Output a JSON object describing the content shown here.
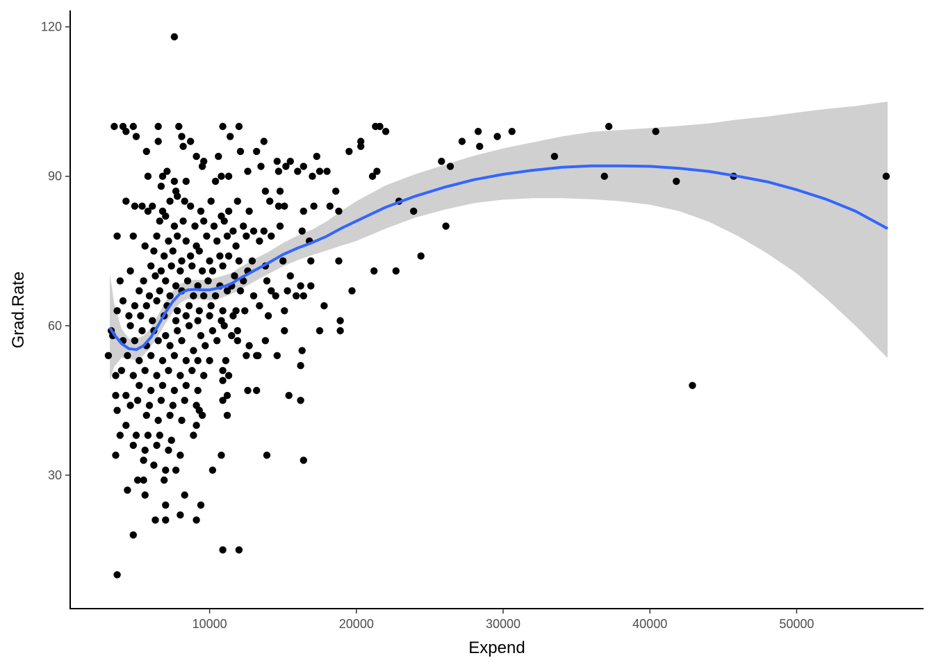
{
  "chart_data": {
    "type": "scatter",
    "title": "",
    "xlabel": "Expend",
    "ylabel": "Grad.Rate",
    "xlim": [
      500,
      58600
    ],
    "ylim": [
      3.2,
      123.3
    ],
    "xticks": [
      10000,
      20000,
      30000,
      40000,
      50000
    ],
    "xtick_labels": [
      "10000",
      "20000",
      "30000",
      "40000",
      "50000"
    ],
    "yticks": [
      30,
      60,
      90,
      120
    ],
    "ytick_labels": [
      "30",
      "60",
      "90",
      "120"
    ],
    "grid": false,
    "legend": "none",
    "colors": {
      "points": "#000000",
      "smooth_line": "#3366FF",
      "ribbon": "#BEBEBE",
      "axis": "#000000",
      "tick_label": "#4D4D4D"
    },
    "points": [
      [
        7600,
        118
      ],
      [
        3500,
        100
      ],
      [
        4100,
        100
      ],
      [
        4800,
        100
      ],
      [
        6500,
        100
      ],
      [
        7900,
        100
      ],
      [
        10900,
        100
      ],
      [
        12000,
        100
      ],
      [
        21300,
        100
      ],
      [
        21600,
        100
      ],
      [
        37200,
        100
      ],
      [
        4300,
        99
      ],
      [
        5000,
        98
      ],
      [
        28300,
        99
      ],
      [
        30600,
        99
      ],
      [
        40400,
        99
      ],
      [
        22000,
        99
      ],
      [
        8100,
        98
      ],
      [
        11400,
        98
      ],
      [
        29600,
        98
      ],
      [
        5700,
        95
      ],
      [
        6500,
        97
      ],
      [
        8200,
        96
      ],
      [
        8700,
        97
      ],
      [
        13200,
        95
      ],
      [
        13700,
        97
      ],
      [
        20300,
        97
      ],
      [
        27200,
        97
      ],
      [
        28400,
        96
      ],
      [
        9100,
        94
      ],
      [
        9600,
        93
      ],
      [
        10600,
        94
      ],
      [
        12100,
        95
      ],
      [
        14600,
        93
      ],
      [
        15500,
        93
      ],
      [
        17300,
        94
      ],
      [
        19500,
        95
      ],
      [
        20300,
        96
      ],
      [
        25800,
        93
      ],
      [
        33500,
        94
      ],
      [
        5800,
        90
      ],
      [
        6800,
        90
      ],
      [
        7100,
        91
      ],
      [
        7600,
        89
      ],
      [
        8400,
        89
      ],
      [
        9500,
        92
      ],
      [
        10400,
        89
      ],
      [
        10800,
        90
      ],
      [
        11300,
        90
      ],
      [
        12600,
        91
      ],
      [
        13500,
        92
      ],
      [
        14700,
        91
      ],
      [
        15200,
        92
      ],
      [
        16000,
        91
      ],
      [
        16400,
        92
      ],
      [
        17500,
        91
      ],
      [
        18000,
        91
      ],
      [
        21100,
        90
      ],
      [
        21400,
        91
      ],
      [
        26400,
        92
      ],
      [
        36900,
        90
      ],
      [
        41800,
        89
      ],
      [
        45700,
        90
      ],
      [
        56100,
        90
      ],
      [
        6700,
        88
      ],
      [
        7700,
        87
      ],
      [
        13800,
        87
      ],
      [
        14800,
        87
      ],
      [
        17000,
        90
      ],
      [
        18600,
        87
      ],
      [
        4300,
        85
      ],
      [
        4900,
        84
      ],
      [
        5400,
        84
      ],
      [
        6100,
        84
      ],
      [
        6800,
        83
      ],
      [
        7300,
        85
      ],
      [
        7800,
        86
      ],
      [
        8300,
        85
      ],
      [
        8700,
        84
      ],
      [
        9400,
        83
      ],
      [
        10100,
        85
      ],
      [
        10800,
        82
      ],
      [
        11300,
        83
      ],
      [
        11900,
        85
      ],
      [
        12700,
        83
      ],
      [
        14100,
        85
      ],
      [
        14700,
        84
      ],
      [
        15100,
        84
      ],
      [
        16400,
        83
      ],
      [
        17100,
        84
      ],
      [
        18200,
        84
      ],
      [
        18800,
        83
      ],
      [
        22900,
        85
      ],
      [
        23900,
        83
      ],
      [
        5800,
        83
      ],
      [
        6600,
        81
      ],
      [
        7000,
        82
      ],
      [
        7600,
        80
      ],
      [
        8200,
        81
      ],
      [
        9000,
        80
      ],
      [
        9600,
        81
      ],
      [
        10300,
        80
      ],
      [
        11000,
        81
      ],
      [
        11600,
        79
      ],
      [
        12300,
        80
      ],
      [
        13000,
        79
      ],
      [
        13700,
        79
      ],
      [
        14800,
        80
      ],
      [
        16300,
        79
      ],
      [
        26100,
        80
      ],
      [
        3700,
        78
      ],
      [
        4800,
        78
      ],
      [
        5600,
        76
      ],
      [
        6400,
        78
      ],
      [
        7200,
        77
      ],
      [
        7800,
        78
      ],
      [
        8400,
        77
      ],
      [
        9100,
        76
      ],
      [
        9800,
        78
      ],
      [
        10500,
        77
      ],
      [
        11200,
        78
      ],
      [
        11800,
        76
      ],
      [
        12500,
        78
      ],
      [
        13400,
        77
      ],
      [
        14200,
        78
      ],
      [
        16800,
        77
      ],
      [
        6200,
        75
      ],
      [
        6900,
        74
      ],
      [
        7500,
        75
      ],
      [
        8100,
        73
      ],
      [
        8700,
        74
      ],
      [
        9300,
        75
      ],
      [
        10000,
        73
      ],
      [
        10700,
        74
      ],
      [
        11300,
        74
      ],
      [
        12000,
        73
      ],
      [
        12900,
        73
      ],
      [
        15000,
        73
      ],
      [
        24400,
        74
      ],
      [
        6000,
        72
      ],
      [
        6700,
        71
      ],
      [
        7400,
        72
      ],
      [
        8000,
        71
      ],
      [
        8800,
        72
      ],
      [
        9500,
        71
      ],
      [
        10200,
        71
      ],
      [
        10900,
        72
      ],
      [
        11700,
        70
      ],
      [
        12600,
        71
      ],
      [
        13800,
        72
      ],
      [
        16900,
        73
      ],
      [
        18800,
        73
      ],
      [
        21200,
        71
      ],
      [
        22700,
        71
      ],
      [
        4600,
        71
      ],
      [
        5500,
        69
      ],
      [
        6300,
        70
      ],
      [
        7000,
        69
      ],
      [
        7700,
        68
      ],
      [
        8500,
        69
      ],
      [
        9200,
        68
      ],
      [
        9900,
        69
      ],
      [
        10700,
        68
      ],
      [
        11500,
        68
      ],
      [
        12300,
        69
      ],
      [
        13900,
        69
      ],
      [
        15500,
        70
      ],
      [
        3900,
        69
      ],
      [
        16200,
        68
      ],
      [
        16900,
        68
      ],
      [
        5200,
        67
      ],
      [
        5900,
        66
      ],
      [
        6600,
        67
      ],
      [
        7300,
        66
      ],
      [
        8100,
        67
      ],
      [
        8900,
        66
      ],
      [
        9600,
        66
      ],
      [
        10400,
        66
      ],
      [
        11200,
        67
      ],
      [
        12100,
        67
      ],
      [
        13000,
        66
      ],
      [
        14200,
        67
      ],
      [
        15300,
        67
      ],
      [
        19700,
        67
      ],
      [
        4100,
        65
      ],
      [
        4900,
        64
      ],
      [
        5700,
        64
      ],
      [
        6400,
        65
      ],
      [
        7100,
        64
      ],
      [
        7800,
        63
      ],
      [
        8600,
        64
      ],
      [
        9300,
        63
      ],
      [
        10100,
        64
      ],
      [
        10900,
        63
      ],
      [
        11800,
        63
      ],
      [
        13400,
        64
      ],
      [
        14500,
        66
      ],
      [
        15900,
        66
      ],
      [
        16400,
        66
      ],
      [
        17800,
        64
      ],
      [
        3700,
        63
      ],
      [
        4500,
        62
      ],
      [
        5300,
        62
      ],
      [
        6100,
        61
      ],
      [
        6900,
        62
      ],
      [
        7700,
        61
      ],
      [
        8400,
        62
      ],
      [
        9200,
        61
      ],
      [
        10000,
        62
      ],
      [
        10800,
        61
      ],
      [
        11600,
        62
      ],
      [
        12400,
        63
      ],
      [
        14000,
        62
      ],
      [
        15100,
        63
      ],
      [
        4600,
        60
      ],
      [
        5400,
        59
      ],
      [
        6200,
        59
      ],
      [
        7000,
        58
      ],
      [
        7800,
        59
      ],
      [
        8600,
        60
      ],
      [
        9400,
        58
      ],
      [
        10200,
        59
      ],
      [
        11000,
        60
      ],
      [
        11900,
        59
      ],
      [
        15100,
        59
      ],
      [
        17500,
        59
      ],
      [
        18900,
        61
      ],
      [
        18900,
        59
      ],
      [
        3300,
        59
      ],
      [
        4100,
        57
      ],
      [
        4900,
        57
      ],
      [
        5700,
        56
      ],
      [
        6500,
        57
      ],
      [
        7300,
        56
      ],
      [
        8100,
        57
      ],
      [
        8900,
        55
      ],
      [
        9700,
        56
      ],
      [
        10500,
        57
      ],
      [
        11500,
        58
      ],
      [
        11900,
        57
      ],
      [
        13800,
        57
      ],
      [
        3400,
        58
      ],
      [
        3100,
        54
      ],
      [
        4400,
        54
      ],
      [
        5200,
        53
      ],
      [
        6000,
        54
      ],
      [
        6800,
        53
      ],
      [
        7600,
        54
      ],
      [
        8400,
        53
      ],
      [
        9200,
        53
      ],
      [
        10000,
        53
      ],
      [
        11100,
        53
      ],
      [
        12700,
        56
      ],
      [
        13200,
        54
      ],
      [
        14600,
        54
      ],
      [
        16300,
        55
      ],
      [
        4000,
        51
      ],
      [
        4800,
        50
      ],
      [
        5600,
        51
      ],
      [
        6400,
        50
      ],
      [
        7200,
        51
      ],
      [
        8000,
        50
      ],
      [
        8800,
        51
      ],
      [
        9600,
        50
      ],
      [
        10900,
        51
      ],
      [
        11300,
        50
      ],
      [
        12500,
        54
      ],
      [
        13300,
        54
      ],
      [
        16200,
        52
      ],
      [
        3600,
        50
      ],
      [
        5200,
        48
      ],
      [
        6000,
        47
      ],
      [
        6800,
        48
      ],
      [
        7600,
        47
      ],
      [
        8400,
        48
      ],
      [
        9200,
        47
      ],
      [
        10900,
        49
      ],
      [
        12600,
        47
      ],
      [
        13200,
        47
      ],
      [
        4300,
        46
      ],
      [
        5100,
        45
      ],
      [
        5900,
        44
      ],
      [
        6700,
        45
      ],
      [
        7500,
        44
      ],
      [
        8300,
        45
      ],
      [
        9100,
        44
      ],
      [
        10900,
        45
      ],
      [
        11200,
        46
      ],
      [
        15400,
        46
      ],
      [
        16200,
        45
      ],
      [
        3600,
        46
      ],
      [
        4600,
        44
      ],
      [
        3700,
        43
      ],
      [
        5700,
        42
      ],
      [
        6500,
        41
      ],
      [
        7300,
        42
      ],
      [
        8100,
        41
      ],
      [
        9300,
        43
      ],
      [
        11200,
        42
      ],
      [
        9500,
        42
      ],
      [
        4300,
        40
      ],
      [
        5000,
        38
      ],
      [
        5800,
        38
      ],
      [
        6600,
        38
      ],
      [
        7400,
        37
      ],
      [
        8900,
        38
      ],
      [
        9100,
        40
      ],
      [
        3900,
        38
      ],
      [
        4800,
        36
      ],
      [
        5600,
        35
      ],
      [
        6400,
        36
      ],
      [
        7200,
        35
      ],
      [
        8000,
        34
      ],
      [
        10800,
        34
      ],
      [
        13900,
        34
      ],
      [
        16400,
        33
      ],
      [
        3600,
        34
      ],
      [
        5500,
        33
      ],
      [
        6200,
        32
      ],
      [
        7000,
        31
      ],
      [
        7700,
        31
      ],
      [
        10200,
        31
      ],
      [
        5100,
        29
      ],
      [
        5500,
        29
      ],
      [
        6900,
        29
      ],
      [
        4400,
        27
      ],
      [
        5600,
        26
      ],
      [
        8300,
        26
      ],
      [
        9400,
        24
      ],
      [
        7000,
        24
      ],
      [
        6300,
        21
      ],
      [
        7000,
        21
      ],
      [
        8000,
        22
      ],
      [
        9100,
        21
      ],
      [
        4800,
        18
      ],
      [
        10900,
        15
      ],
      [
        12000,
        15
      ],
      [
        3700,
        10
      ],
      [
        42900,
        48
      ]
    ],
    "smooth": {
      "x": [
        3200,
        3500,
        4000,
        4500,
        5000,
        5500,
        6000,
        6500,
        7000,
        7500,
        8000,
        8500,
        9000,
        9500,
        10000,
        10500,
        11000,
        11500,
        12000,
        13000,
        14000,
        15000,
        16000,
        17000,
        18000,
        19000,
        20000,
        22000,
        24000,
        26000,
        28000,
        30000,
        32000,
        34000,
        36000,
        38000,
        40000,
        42000,
        44000,
        46000,
        48000,
        50000,
        52000,
        54000,
        56200
      ],
      "y": [
        59.6,
        58.2,
        56.4,
        55.4,
        55.2,
        56.0,
        57.7,
        60.1,
        62.7,
        64.9,
        66.5,
        67.2,
        67.3,
        67.2,
        67.2,
        67.5,
        67.9,
        68.5,
        69.4,
        71.0,
        72.6,
        74.3,
        75.6,
        76.7,
        78.0,
        79.6,
        81.0,
        83.8,
        86.0,
        87.8,
        89.3,
        90.4,
        91.2,
        91.8,
        92.1,
        92.1,
        92.0,
        91.6,
        91.0,
        90.0,
        88.9,
        87.3,
        85.4,
        83.0,
        79.5
      ],
      "lower": [
        49.0,
        51.8,
        53.6,
        53.4,
        53.0,
        54.1,
        55.8,
        58.0,
        60.5,
        62.8,
        64.6,
        65.4,
        65.4,
        65.3,
        65.1,
        65.3,
        65.8,
        66.4,
        67.1,
        68.8,
        70.4,
        71.9,
        73.2,
        74.2,
        75.1,
        76.1,
        77.0,
        79.5,
        81.7,
        83.3,
        84.6,
        85.3,
        85.6,
        85.6,
        85.4,
        85.0,
        84.3,
        83.0,
        80.9,
        78.0,
        74.5,
        70.5,
        65.5,
        60.0,
        53.5
      ],
      "upper": [
        70.5,
        64.5,
        59.4,
        57.4,
        57.4,
        58.0,
        59.6,
        62.2,
        64.9,
        67.0,
        68.4,
        69.0,
        69.2,
        69.2,
        69.3,
        69.7,
        70.1,
        70.6,
        71.6,
        73.3,
        74.8,
        76.6,
        78.1,
        79.3,
        81.0,
        83.1,
        85.0,
        88.2,
        90.4,
        92.3,
        94.1,
        95.6,
        96.8,
        98.0,
        98.9,
        99.3,
        99.7,
        100.1,
        100.6,
        101.4,
        102.0,
        102.8,
        103.5,
        104.1,
        105.0
      ]
    }
  }
}
